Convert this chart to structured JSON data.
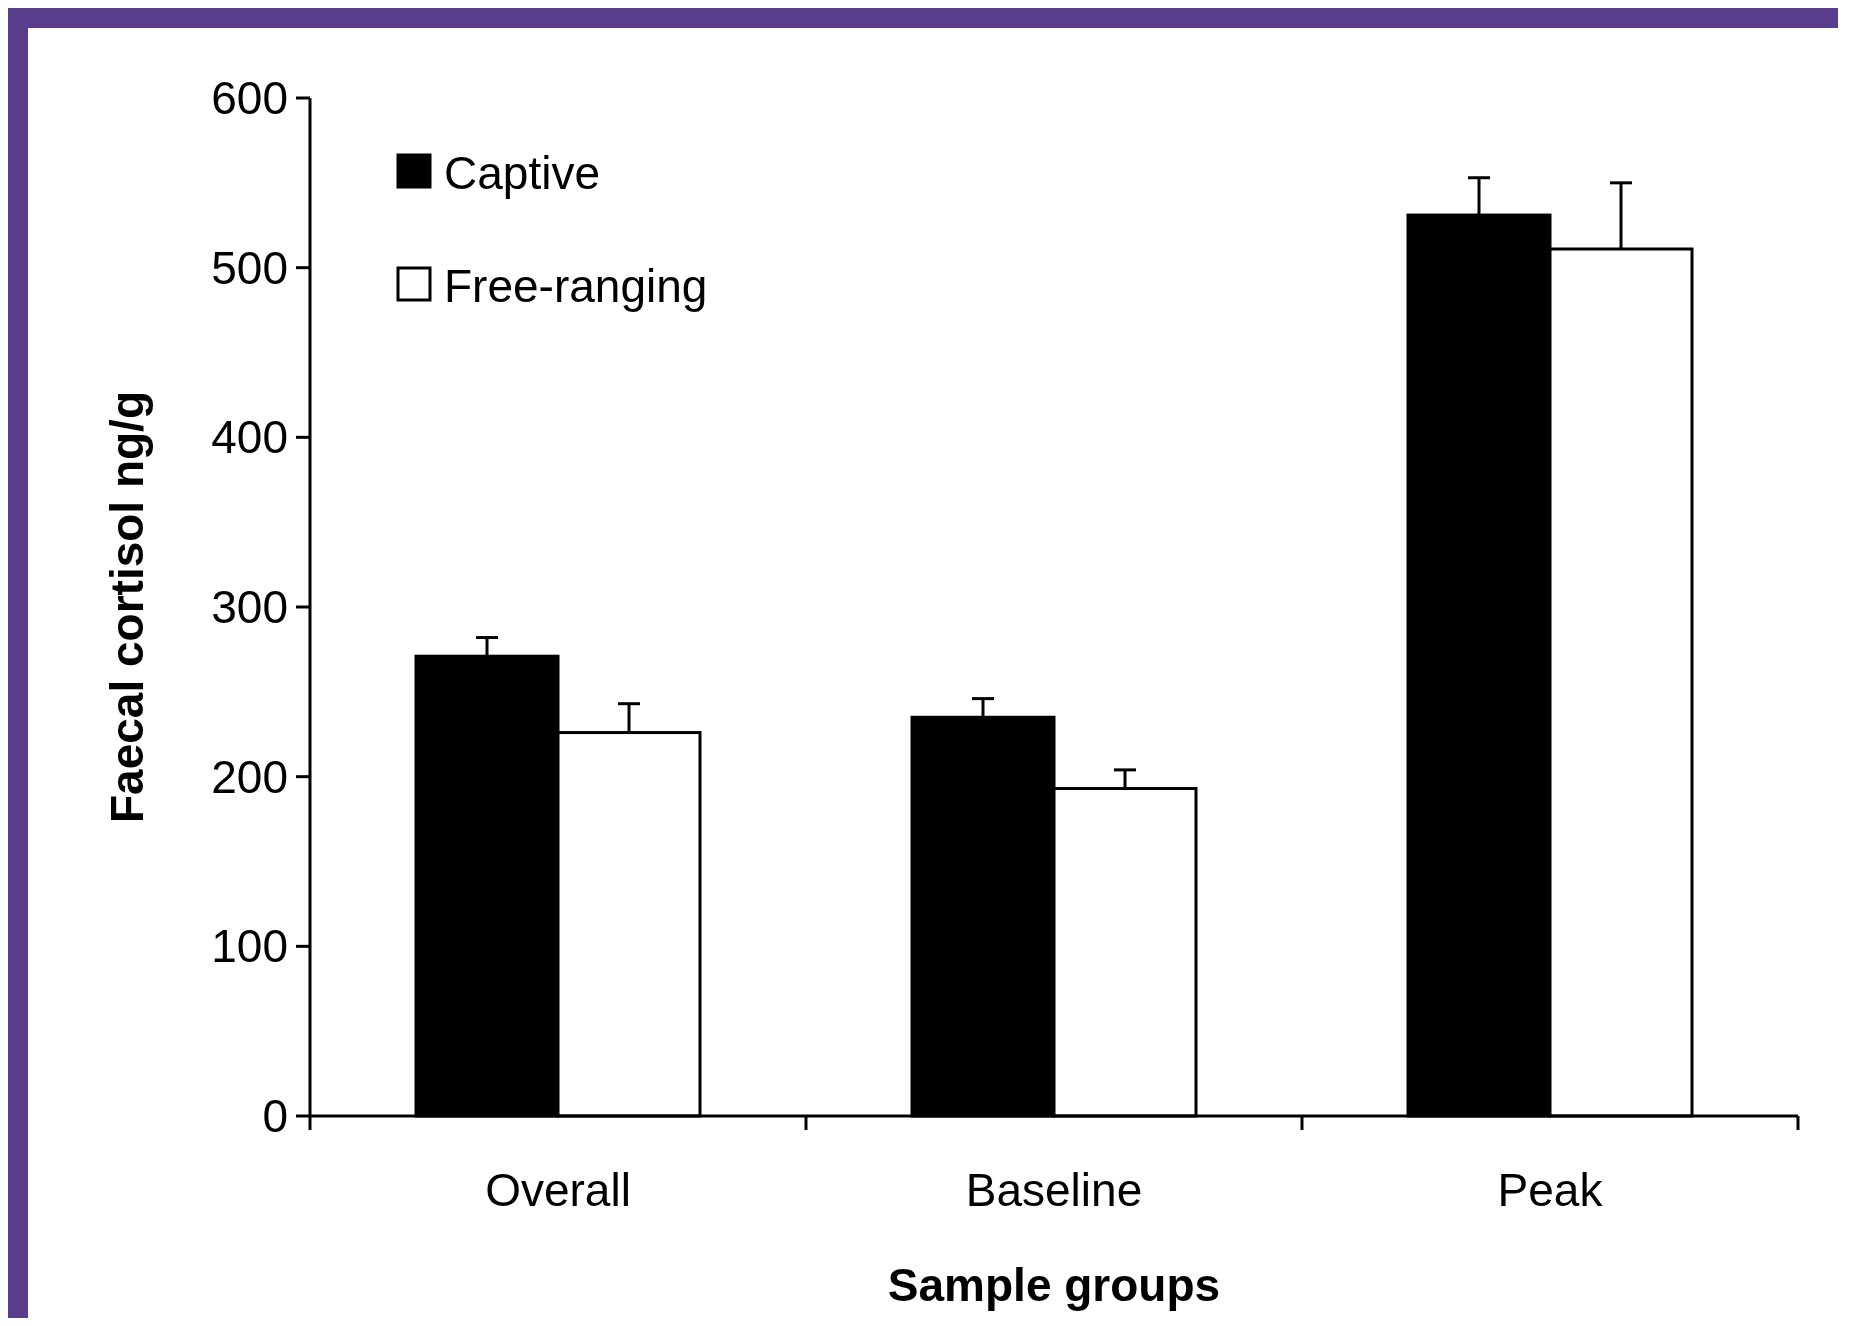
{
  "chart_data": {
    "type": "bar",
    "xlabel": "Sample groups",
    "ylabel": "Faecal cortisol ng/g",
    "categories": [
      "Overall",
      "Baseline",
      "Peak"
    ],
    "series": [
      {
        "name": "Captive",
        "color": "#000000",
        "values": [
          271,
          235,
          531
        ],
        "errors": [
          [
            271,
            282
          ],
          [
            235,
            246
          ],
          [
            531,
            553
          ]
        ]
      },
      {
        "name": "Free-ranging",
        "color": "#ffffff",
        "values": [
          226,
          193,
          511
        ],
        "errors": [
          [
            226,
            243
          ],
          [
            193,
            204
          ],
          [
            511,
            550
          ]
        ]
      }
    ],
    "ylim": [
      0,
      600
    ],
    "yticks": [
      0,
      100,
      200,
      300,
      400,
      500,
      600
    ],
    "grid": false,
    "legend": "top left"
  }
}
